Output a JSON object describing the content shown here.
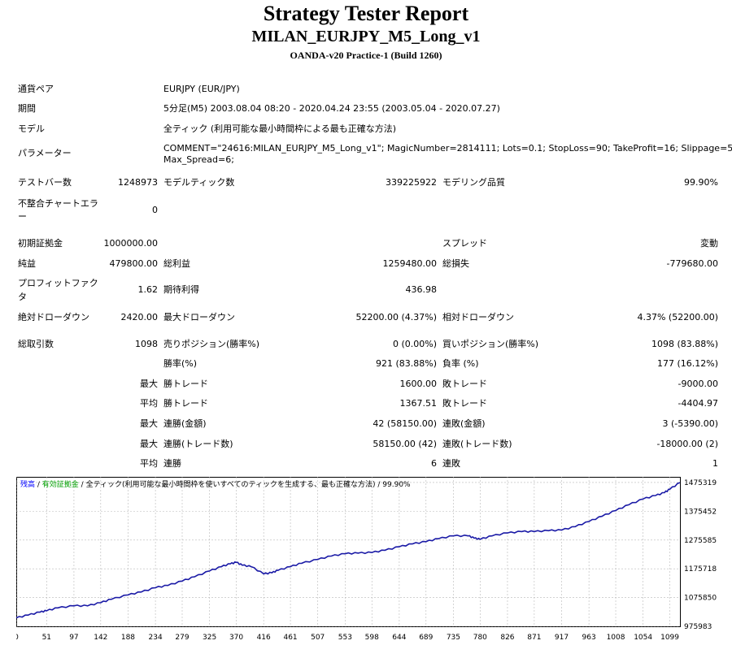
{
  "header": {
    "title": "Strategy Tester Report",
    "subtitle": "MILAN_EURJPY_M5_Long_v1",
    "build": "OANDA-v20 Practice-1 (Build 1260)"
  },
  "info": {
    "pair_label": "通貨ペア",
    "pair_value": "EURJPY (EUR/JPY)",
    "period_label": "期間",
    "period_value": "5分足(M5) 2003.08.04 08:20 - 2020.04.24 23:55 (2003.05.04 - 2020.07.27)",
    "model_label": "モデル",
    "model_value": "全ティック (利用可能な最小時間枠による最も正確な方法)",
    "params_label": "パラメーター",
    "params_line1": "COMMENT=\"24616:MILAN_EURJPY_M5_Long_v1\"; MagicNumber=2814111; Lots=0.1; StopLoss=90; TakeProfit=16; Slippage=5;",
    "params_line2": "Max_Spread=6;"
  },
  "stats": {
    "bars_label": "テストバー数",
    "bars_value": "1248973",
    "ticks_label": "モデルティック数",
    "ticks_value": "339225922",
    "quality_label": "モデリング品質",
    "quality_value": "99.90%",
    "mismatch_label_1": "不整合チャートエラ",
    "mismatch_label_2": "ー",
    "mismatch_value": "0",
    "deposit_label": "初期証拠金",
    "deposit_value": "1000000.00",
    "spread_label": "スプレッド",
    "spread_value": "変動",
    "net_label": "純益",
    "net_value": "479800.00",
    "gross_profit_label": "総利益",
    "gross_profit_value": "1259480.00",
    "gross_loss_label": "総損失",
    "gross_loss_value": "-779680.00",
    "pf_label_1": "プロフィットファク",
    "pf_label_2": "タ",
    "pf_value": "1.62",
    "expected_label": "期待利得",
    "expected_value": "436.98",
    "abs_dd_label": "絶対ドローダウン",
    "abs_dd_value": "2420.00",
    "max_dd_label": "最大ドローダウン",
    "max_dd_value": "52200.00 (4.37%)",
    "rel_dd_label": "相対ドローダウン",
    "rel_dd_value": "4.37% (52200.00)",
    "trades_label": "総取引数",
    "trades_value": "1098",
    "short_label": "売りポジション(勝率%)",
    "short_value": "0 (0.00%)",
    "long_label": "買いポジション(勝率%)",
    "long_value": "1098 (83.88%)",
    "win_label": "勝率(%)",
    "win_value": "921 (83.88%)",
    "loss_label": "負率 (%)",
    "loss_value": "177 (16.12%)",
    "max_prefix": "最大",
    "avg_prefix": "平均",
    "largest_win_label": "勝トレード",
    "largest_win_value": "1600.00",
    "largest_loss_label": "敗トレード",
    "largest_loss_value": "-9000.00",
    "avg_win_label": "勝トレード",
    "avg_win_value": "1367.51",
    "avg_loss_label": "敗トレード",
    "avg_loss_value": "-4404.97",
    "max_cons_wins_label": "連勝(金額)",
    "max_cons_wins_value": "42 (58150.00)",
    "max_cons_losses_label": "連敗(金額)",
    "max_cons_losses_value": "3 (-5390.00)",
    "max_cons_profit_label": "連勝(トレード数)",
    "max_cons_profit_value": "58150.00 (42)",
    "max_cons_loss_label": "連敗(トレード数)",
    "max_cons_loss_value": "-18000.00 (2)",
    "avg_cons_wins_label": "連勝",
    "avg_cons_wins_value": "6",
    "avg_cons_losses_label": "連敗",
    "avg_cons_losses_value": "1"
  },
  "chart_legend": {
    "balance": "残高",
    "sep1": " / ",
    "equity": "有効証拠金",
    "sep2": " / ",
    "model_text": "全ティック(利用可能な最小時間枠を使いすべてのティックを生成する、最も正確な方法)",
    "quality_text": " / 99.90%",
    "balance_color": "#0000ff",
    "equity_color": "#00a000",
    "line_color": "#1a1aa6"
  },
  "chart_data": {
    "type": "line",
    "x_ticks": [
      "0",
      "51",
      "97",
      "142",
      "188",
      "234",
      "279",
      "325",
      "370",
      "416",
      "461",
      "507",
      "553",
      "598",
      "644",
      "689",
      "735",
      "780",
      "826",
      "871",
      "917",
      "963",
      "1008",
      "1054",
      "1099"
    ],
    "y_ticks": [
      "1475319",
      "1375452",
      "1275585",
      "1175718",
      "1075850",
      "975983"
    ],
    "xlim": [
      0,
      1116
    ],
    "ylim": [
      975983,
      1495000
    ],
    "grid": true,
    "series": [
      {
        "x": [
          0,
          20,
          40,
          51,
          70,
          97,
          120,
          142,
          160,
          188,
          210,
          234,
          255,
          279,
          300,
          325,
          345,
          360,
          370,
          380,
          395,
          416,
          430,
          440,
          461,
          480,
          507,
          530,
          553,
          575,
          598,
          620,
          644,
          666,
          689,
          710,
          735,
          760,
          770,
          780,
          800,
          826,
          850,
          871,
          895,
          917,
          940,
          963,
          985,
          1008,
          1030,
          1054,
          1075,
          1090,
          1099,
          1116
        ],
        "y": [
          1005000,
          1015000,
          1025000,
          1030000,
          1040000,
          1047000,
          1047000,
          1058000,
          1070000,
          1085000,
          1095000,
          1110000,
          1118000,
          1133000,
          1148000,
          1168000,
          1183000,
          1193000,
          1198000,
          1188000,
          1183000,
          1158000,
          1162000,
          1170000,
          1183000,
          1195000,
          1208000,
          1220000,
          1228000,
          1230000,
          1232000,
          1240000,
          1252000,
          1262000,
          1270000,
          1280000,
          1290000,
          1290000,
          1282000,
          1278000,
          1290000,
          1300000,
          1305000,
          1305000,
          1308000,
          1310000,
          1322000,
          1340000,
          1358000,
          1378000,
          1398000,
          1418000,
          1430000,
          1440000,
          1452000,
          1475000
        ]
      }
    ]
  }
}
